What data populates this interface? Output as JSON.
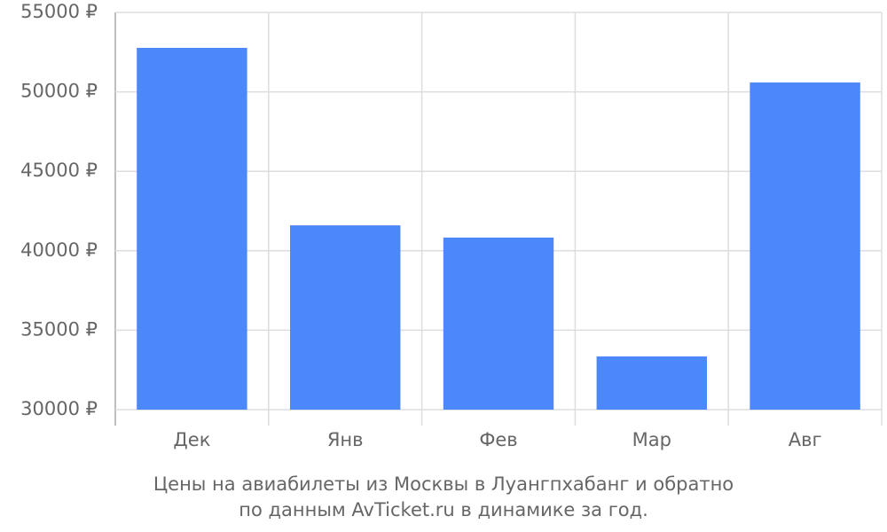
{
  "chart_data": {
    "type": "bar",
    "title": [
      "Цены на авиабилеты из Москвы в Луангпхабанг и обратно",
      "по данным AvTicket.ru в динамике за год."
    ],
    "categories": [
      "Дек",
      "Янв",
      "Фев",
      "Мар",
      "Авг"
    ],
    "values": [
      52770,
      41600,
      40830,
      33350,
      50590
    ],
    "color": "#4d88fa",
    "ylim": [
      30000,
      55000
    ],
    "yticks": [
      {
        "value": 30000,
        "label": "30000 ₽"
      },
      {
        "value": 35000,
        "label": "35000 ₽"
      },
      {
        "value": 40000,
        "label": "40000 ₽"
      },
      {
        "value": 45000,
        "label": "45000 ₽"
      },
      {
        "value": 50000,
        "label": "50000 ₽"
      },
      {
        "value": 55000,
        "label": "55000 ₽"
      }
    ],
    "grid": true
  }
}
